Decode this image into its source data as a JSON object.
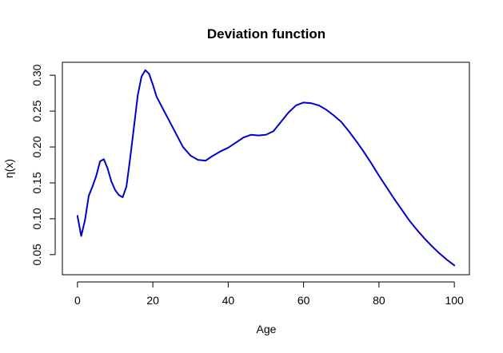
{
  "chart_data": {
    "type": "line",
    "title": "Deviation function",
    "xlabel": "Age",
    "ylabel": "η(x)",
    "xlim": [
      -4,
      104
    ],
    "ylim": [
      0.022,
      0.318
    ],
    "x_ticks": [
      0,
      20,
      40,
      60,
      80,
      100
    ],
    "y_ticks": [
      0.05,
      0.1,
      0.15,
      0.2,
      0.25,
      0.3
    ],
    "x_tick_labels": [
      "0",
      "20",
      "40",
      "60",
      "80",
      "100"
    ],
    "y_tick_labels": [
      "0.05",
      "0.10",
      "0.15",
      "0.20",
      "0.25",
      "0.30"
    ],
    "grid": false,
    "line_color": "#0000CD",
    "series": [
      {
        "x": [
          0,
          1,
          2,
          3,
          4,
          5,
          6,
          7,
          8,
          9,
          10,
          11,
          12,
          13,
          14,
          15,
          16,
          17,
          18,
          19,
          20,
          21,
          22,
          24,
          26,
          28,
          30,
          32,
          34,
          36,
          38,
          40,
          42,
          44,
          46,
          48,
          50,
          52,
          54,
          56,
          58,
          60,
          62,
          64,
          66,
          68,
          70,
          72,
          74,
          76,
          78,
          80,
          82,
          84,
          86,
          88,
          90,
          92,
          94,
          96,
          98,
          100
        ],
        "y": [
          0.104,
          0.076,
          0.098,
          0.132,
          0.145,
          0.16,
          0.18,
          0.183,
          0.17,
          0.152,
          0.14,
          0.133,
          0.13,
          0.145,
          0.185,
          0.228,
          0.272,
          0.298,
          0.307,
          0.302,
          0.287,
          0.27,
          0.26,
          0.24,
          0.22,
          0.2,
          0.188,
          0.182,
          0.181,
          0.188,
          0.194,
          0.199,
          0.206,
          0.213,
          0.217,
          0.216,
          0.217,
          0.222,
          0.235,
          0.248,
          0.258,
          0.262,
          0.261,
          0.258,
          0.252,
          0.244,
          0.235,
          0.222,
          0.208,
          0.193,
          0.177,
          0.16,
          0.144,
          0.128,
          0.113,
          0.098,
          0.085,
          0.073,
          0.062,
          0.052,
          0.043,
          0.035
        ]
      }
    ]
  }
}
